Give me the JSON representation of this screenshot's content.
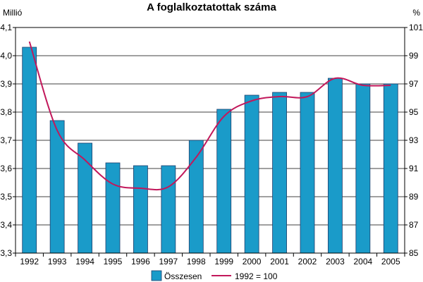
{
  "chart_data": {
    "type": "bar",
    "title": "A foglalkoztatottak száma",
    "y_left_unit": "Millió",
    "y_right_unit": "%",
    "categories": [
      "1992",
      "1993",
      "1994",
      "1995",
      "1996",
      "1997",
      "1998",
      "1999",
      "2000",
      "2001",
      "2002",
      "2003",
      "2004",
      "2005"
    ],
    "series": [
      {
        "name": "Összesen",
        "type": "bar",
        "axis": "left",
        "color": "#1a9bc9",
        "values": [
          4.03,
          3.77,
          3.69,
          3.62,
          3.61,
          3.61,
          3.7,
          3.81,
          3.86,
          3.87,
          3.87,
          3.92,
          3.9,
          3.9
        ]
      },
      {
        "name": "1992 = 100",
        "type": "line",
        "axis": "right",
        "color": "#c2185b",
        "values": [
          100.0,
          93.7,
          91.6,
          89.9,
          89.6,
          89.7,
          91.8,
          94.7,
          95.8,
          96.1,
          96.1,
          97.4,
          96.9,
          96.9
        ]
      }
    ],
    "y_left": {
      "min": 3.3,
      "max": 4.1,
      "step": 0.1,
      "tick_labels": [
        "3,3",
        "3,4",
        "3,5",
        "3,6",
        "3,7",
        "3,8",
        "3,9",
        "4,0",
        "4,1"
      ]
    },
    "y_right": {
      "min": 85,
      "max": 101,
      "step": 2,
      "tick_labels": [
        "85",
        "87",
        "89",
        "91",
        "93",
        "95",
        "97",
        "99",
        "101"
      ]
    },
    "grid": true,
    "legend_position": "bottom"
  }
}
